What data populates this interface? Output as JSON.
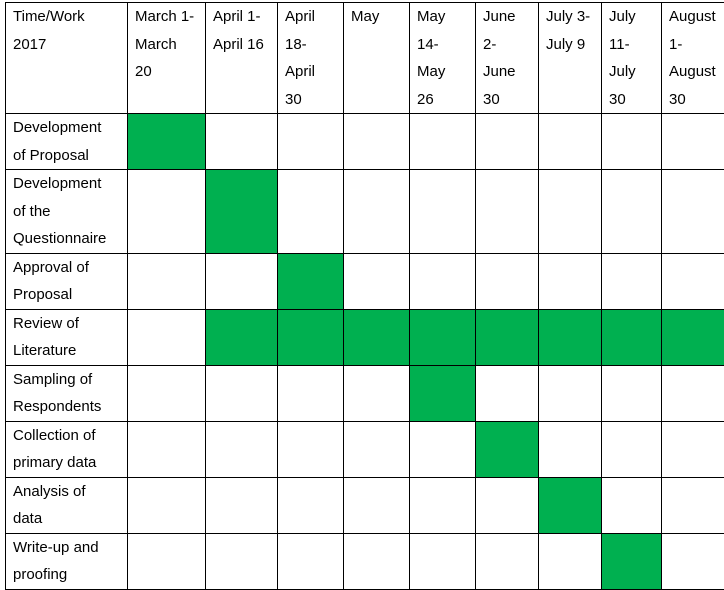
{
  "table": {
    "header": [
      [
        "Time/Work",
        "2017"
      ],
      [
        "March 1-",
        "March",
        "20"
      ],
      [
        "April 1-",
        "April 16"
      ],
      [
        "April",
        "18-",
        "April",
        "30"
      ],
      [
        "May"
      ],
      [
        "May",
        "14-",
        "May",
        "26"
      ],
      [
        "June",
        "2-",
        "June",
        "30"
      ],
      [
        "July 3-",
        "July 9"
      ],
      [
        "July",
        "11-",
        "July",
        "30"
      ],
      [
        "August",
        "1-",
        "August",
        "30"
      ]
    ],
    "fill_color": "#00b050",
    "rows": [
      {
        "label": [
          "Development",
          "of Proposal"
        ],
        "active": [
          0
        ]
      },
      {
        "label": [
          "Development",
          "of the",
          "Questionnaire"
        ],
        "active": [
          1
        ]
      },
      {
        "label": [
          "Approval of",
          "Proposal"
        ],
        "active": [
          2
        ]
      },
      {
        "label": [
          "Review of",
          "Literature"
        ],
        "active": [
          1,
          2,
          3,
          4,
          5,
          6,
          7,
          8
        ]
      },
      {
        "label": [
          "Sampling of",
          "Respondents"
        ],
        "active": [
          4
        ]
      },
      {
        "label": [
          "Collection of",
          "primary data"
        ],
        "active": [
          5
        ]
      },
      {
        "label": [
          "Analysis of",
          "data"
        ],
        "active": [
          6
        ]
      },
      {
        "label": [
          "Write-up and",
          "proofing"
        ],
        "active": [
          7
        ]
      }
    ]
  }
}
